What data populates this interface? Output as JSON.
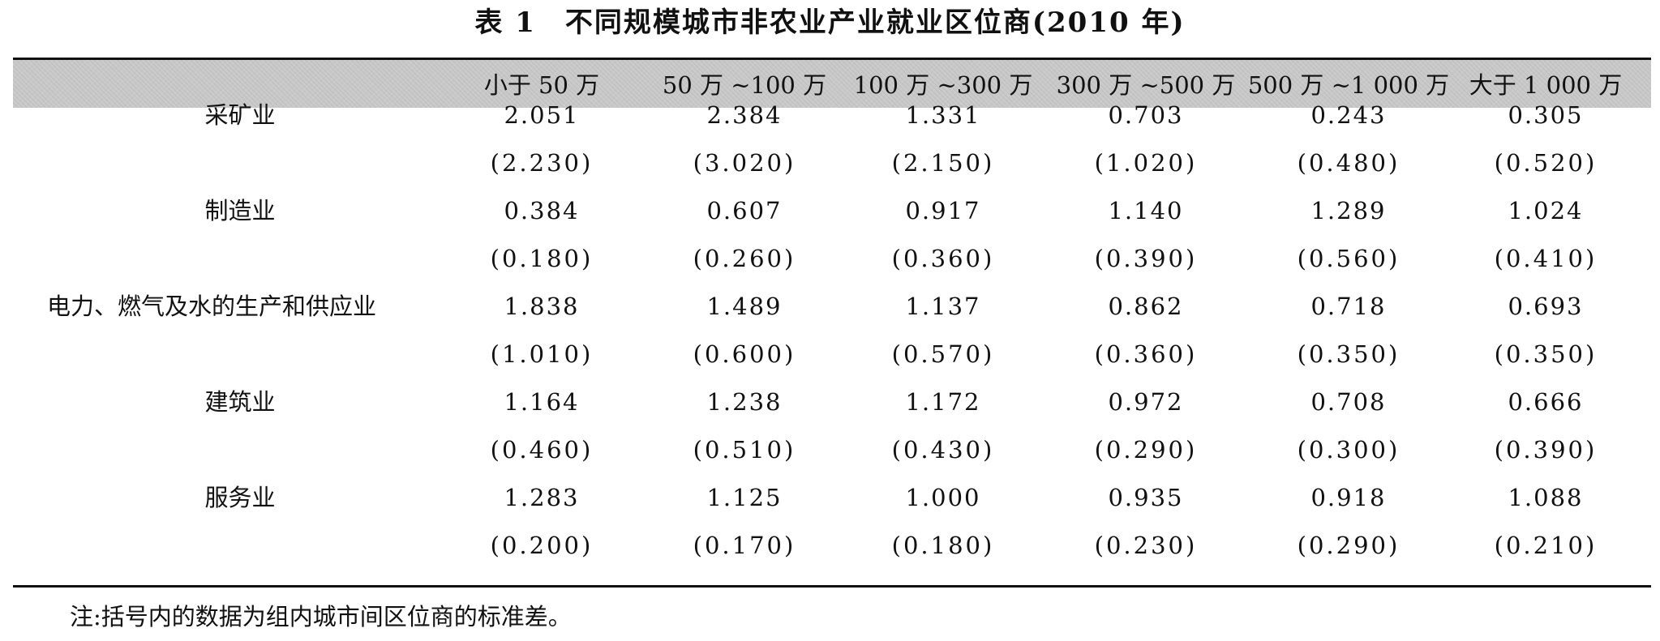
{
  "table": {
    "label": "表 1",
    "title": "不同规模城市非农业产业就业区位商(2010 年)",
    "columns": [
      "小于 50 万",
      "50 万 ~100 万",
      "100 万 ~300 万",
      "300 万 ~500 万",
      "500 万 ~1 000 万",
      "大于 1 000 万"
    ],
    "rows": [
      {
        "label": "采矿业",
        "values": [
          "2.051",
          "2.384",
          "1.331",
          "0.703",
          "0.243",
          "0.305"
        ],
        "sd": [
          "(2.230)",
          "(3.020)",
          "(2.150)",
          "(1.020)",
          "(0.480)",
          "(0.520)"
        ]
      },
      {
        "label": "制造业",
        "values": [
          "0.384",
          "0.607",
          "0.917",
          "1.140",
          "1.289",
          "1.024"
        ],
        "sd": [
          "(0.180)",
          "(0.260)",
          "(0.360)",
          "(0.390)",
          "(0.560)",
          "(0.410)"
        ]
      },
      {
        "label": "电力、燃气及水的生产和供应业",
        "values": [
          "1.838",
          "1.489",
          "1.137",
          "0.862",
          "0.718",
          "0.693"
        ],
        "sd": [
          "(1.010)",
          "(0.600)",
          "(0.570)",
          "(0.360)",
          "(0.350)",
          "(0.350)"
        ]
      },
      {
        "label": "建筑业",
        "values": [
          "1.164",
          "1.238",
          "1.172",
          "0.972",
          "0.708",
          "0.666"
        ],
        "sd": [
          "(0.460)",
          "(0.510)",
          "(0.430)",
          "(0.290)",
          "(0.300)",
          "(0.390)"
        ]
      },
      {
        "label": "服务业",
        "values": [
          "1.283",
          "1.125",
          "1.000",
          "0.935",
          "0.918",
          "1.088"
        ],
        "sd": [
          "(0.200)",
          "(0.170)",
          "(0.180)",
          "(0.230)",
          "(0.290)",
          "(0.210)"
        ]
      }
    ],
    "note": "注:括号内的数据为组内城市间区位商的标准差。"
  }
}
